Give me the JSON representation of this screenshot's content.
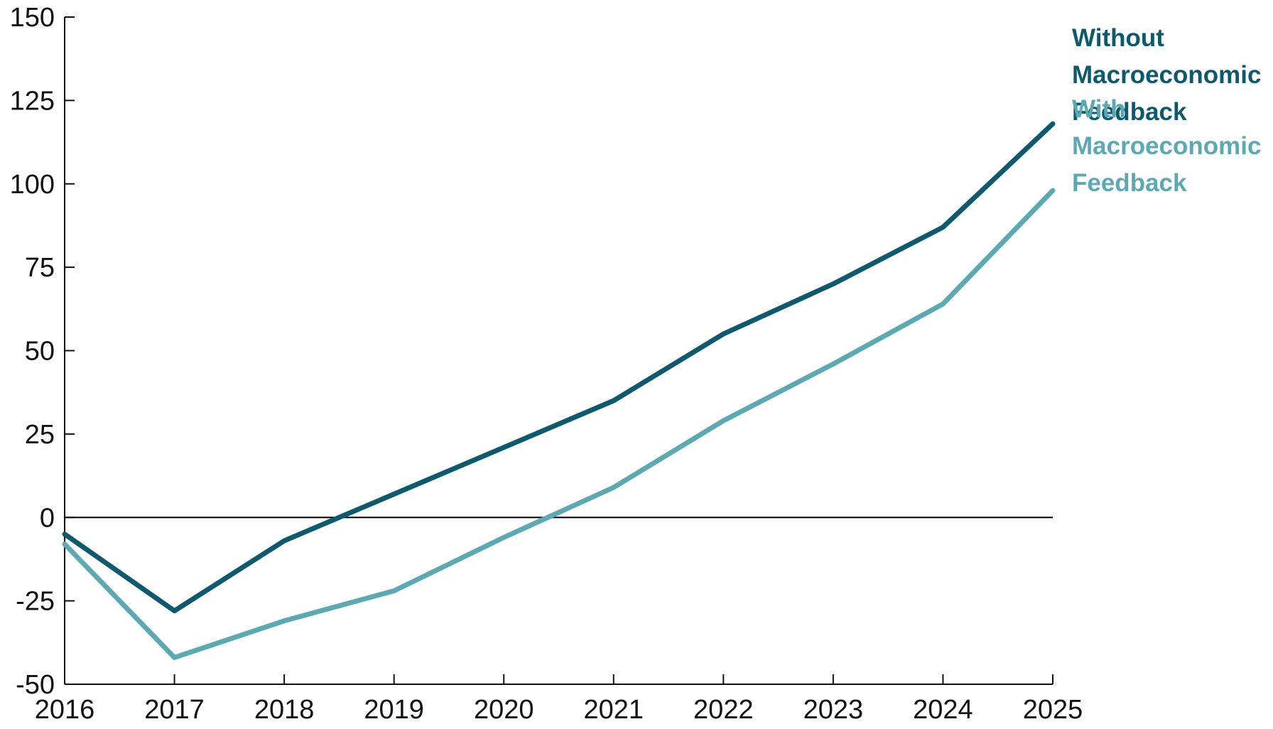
{
  "chart_data": {
    "type": "line",
    "title": "",
    "xlabel": "",
    "ylabel": "",
    "x": [
      "2016",
      "2017",
      "2018",
      "2019",
      "2020",
      "2021",
      "2022",
      "2023",
      "2024",
      "2025"
    ],
    "ylim": [
      -50,
      150
    ],
    "yticks": [
      150,
      125,
      100,
      75,
      50,
      25,
      0,
      -25,
      -50
    ],
    "ytick_labels": [
      "150",
      "125",
      "100",
      "75",
      "50",
      "25",
      "0",
      "-25",
      "-50"
    ],
    "grid": false,
    "zero_line": true,
    "legend_placement": "right",
    "series": [
      {
        "label_lines": [
          "Without",
          "Macroeconomic",
          "Feedback"
        ],
        "color": "#0d5a6e",
        "values": [
          -5,
          -28,
          -7,
          7,
          21,
          35,
          55,
          70,
          87,
          118
        ]
      },
      {
        "label_lines": [
          "With",
          "Macroeconomic",
          "Feedback"
        ],
        "color": "#5aa9b3",
        "values": [
          -8,
          -42,
          -31,
          -22,
          -6,
          9,
          29,
          46,
          64,
          98
        ]
      }
    ]
  }
}
